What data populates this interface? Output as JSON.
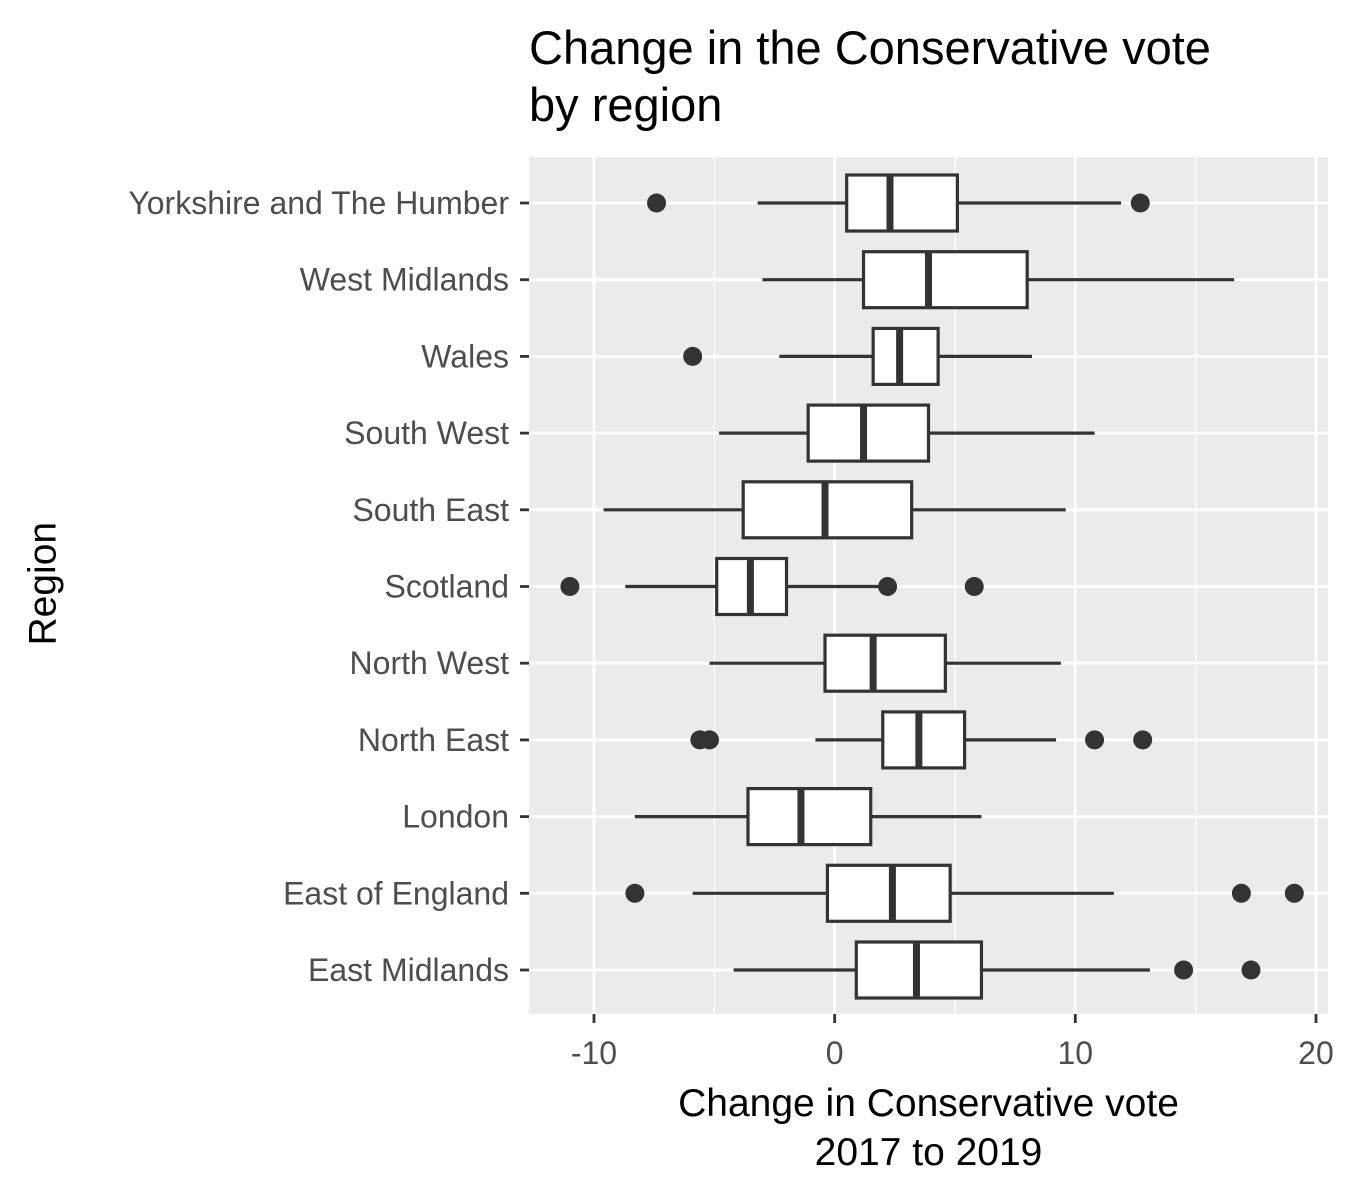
{
  "chart_data": {
    "type": "boxplot",
    "orientation": "horizontal",
    "title_lines": [
      "Change in the Conservative vote",
      "by region"
    ],
    "xlabel_lines": [
      "Change in Conservative vote",
      "2017 to 2019"
    ],
    "ylabel": "Region",
    "xlim": [
      -12.7,
      20.5
    ],
    "x_ticks": [
      {
        "value": -10,
        "label": "-10"
      },
      {
        "value": 0,
        "label": "0"
      },
      {
        "value": 10,
        "label": "10"
      },
      {
        "value": 20,
        "label": "20"
      }
    ],
    "x_minor_ticks": [
      -5,
      5,
      15
    ],
    "grid": true,
    "colors": {
      "panel": "#ebebeb",
      "grid": "#ffffff",
      "box_fill": "#ffffff",
      "box_stroke": "#333333",
      "outlier": "#333333",
      "tick_text": "#4d4d4d",
      "axis_text": "#000000"
    },
    "categories": [
      "Yorkshire and The Humber",
      "West Midlands",
      "Wales",
      "South West",
      "South East",
      "Scotland",
      "North West",
      "North East",
      "London",
      "East of England",
      "East Midlands"
    ],
    "boxes": [
      {
        "region": "Yorkshire and The Humber",
        "whisker_low": -3.2,
        "q1": 0.5,
        "median": 2.3,
        "q3": 5.1,
        "whisker_high": 11.9,
        "outliers": [
          -7.4,
          12.7
        ]
      },
      {
        "region": "West Midlands",
        "whisker_low": -3.0,
        "q1": 1.2,
        "median": 3.9,
        "q3": 8.0,
        "whisker_high": 16.6,
        "outliers": []
      },
      {
        "region": "Wales",
        "whisker_low": -2.3,
        "q1": 1.6,
        "median": 2.7,
        "q3": 4.3,
        "whisker_high": 8.2,
        "outliers": [
          -5.9
        ]
      },
      {
        "region": "South West",
        "whisker_low": -4.8,
        "q1": -1.1,
        "median": 1.2,
        "q3": 3.9,
        "whisker_high": 10.8,
        "outliers": []
      },
      {
        "region": "South East",
        "whisker_low": -9.6,
        "q1": -3.8,
        "median": -0.4,
        "q3": 3.2,
        "whisker_high": 9.6,
        "outliers": []
      },
      {
        "region": "Scotland",
        "whisker_low": -8.7,
        "q1": -4.9,
        "median": -3.5,
        "q3": -2.0,
        "whisker_high": 2.0,
        "outliers": [
          -11.0,
          2.2,
          5.8
        ]
      },
      {
        "region": "North West",
        "whisker_low": -5.2,
        "q1": -0.4,
        "median": 1.6,
        "q3": 4.6,
        "whisker_high": 9.4,
        "outliers": []
      },
      {
        "region": "North East",
        "whisker_low": -0.8,
        "q1": 2.0,
        "median": 3.5,
        "q3": 5.4,
        "whisker_high": 9.2,
        "outliers": [
          -5.6,
          -5.2,
          10.8,
          12.8
        ]
      },
      {
        "region": "London",
        "whisker_low": -8.3,
        "q1": -3.6,
        "median": -1.4,
        "q3": 1.5,
        "whisker_high": 6.1,
        "outliers": []
      },
      {
        "region": "East of England",
        "whisker_low": -5.9,
        "q1": -0.3,
        "median": 2.4,
        "q3": 4.8,
        "whisker_high": 11.6,
        "outliers": [
          -8.3,
          16.9,
          19.1
        ]
      },
      {
        "region": "East Midlands",
        "whisker_low": -4.2,
        "q1": 0.9,
        "median": 3.4,
        "q3": 6.1,
        "whisker_high": 13.1,
        "outliers": [
          14.5,
          17.3
        ]
      }
    ]
  }
}
